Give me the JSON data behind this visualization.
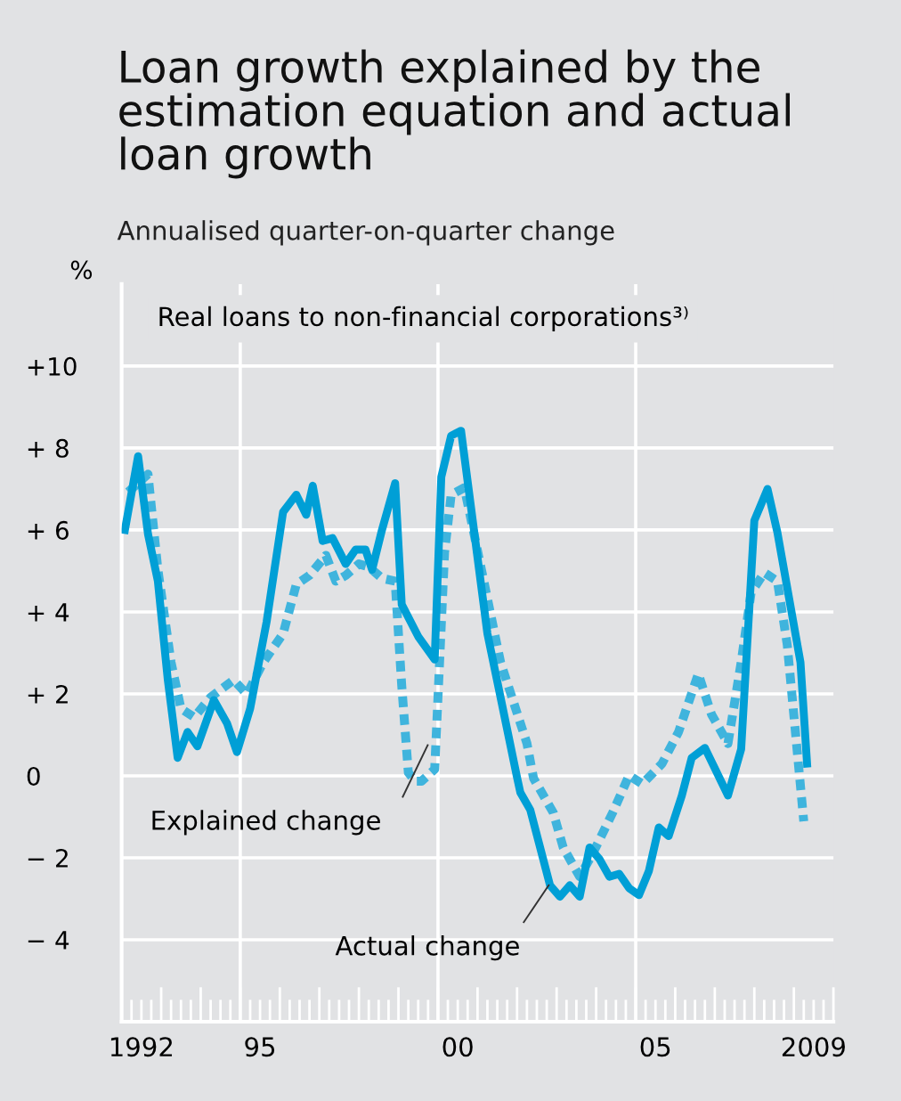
{
  "chart_data": {
    "type": "line",
    "title": "Loan growth explained by the estimation equation and actual loan growth",
    "subtitle": "Annualised quarter-on-quarter change",
    "ylabel": "%",
    "annotations": [
      "Real loans to non-financial corporations³⁾"
    ],
    "xlim": [
      "1992-01",
      "2010-01"
    ],
    "xticks": [
      {
        "value": "1992-07",
        "label": "1992"
      },
      {
        "value": "1995-01",
        "label": null
      },
      {
        "value": "1995-07",
        "label": "95"
      },
      {
        "value": "2000-01",
        "label": null
      },
      {
        "value": "2000-07",
        "label": "00"
      },
      {
        "value": "2005-01",
        "label": null
      },
      {
        "value": "2005-07",
        "label": "05"
      },
      {
        "value": "2009-07",
        "label": "2009"
      }
    ],
    "ylim": [
      -6,
      12
    ],
    "yticks": [
      {
        "value": -4,
        "label": "− 4"
      },
      {
        "value": -2,
        "label": "− 2"
      },
      0,
      {
        "value": 2,
        "label": "+ 2"
      },
      {
        "value": 4,
        "label": "+ 4"
      },
      {
        "value": 6,
        "label": "+ 6"
      },
      {
        "value": 8,
        "label": "+ 8"
      },
      {
        "value": 10,
        "label": "+10"
      }
    ],
    "grid": true,
    "legend": false,
    "series": [
      {
        "name": "Actual change",
        "color": "#009fd6",
        "line_style": "solid",
        "x": [
          "1992-02",
          "1992-06",
          "1992-09",
          "1992-12",
          "1993-03",
          "1993-06",
          "1993-09",
          "1993-12",
          "1994-05",
          "1994-09",
          "1994-12",
          "1995-04",
          "1995-09",
          "1996-02",
          "1996-06",
          "1996-09",
          "1996-11",
          "1997-02",
          "1997-05",
          "1997-09",
          "1997-12",
          "1998-03",
          "1998-05",
          "1998-08",
          "1998-12",
          "1999-02",
          "1999-07",
          "1999-12",
          "2000-02",
          "2000-05",
          "2000-08",
          "2001-04",
          "2002-01",
          "2002-02",
          "2002-05",
          "2002-11",
          "2003-02",
          "2003-05",
          "2003-08",
          "2003-11",
          "2004-02",
          "2004-05",
          "2004-08",
          "2004-11",
          "2005-02",
          "2005-05",
          "2005-08",
          "2005-11",
          "2006-03",
          "2006-06",
          "2006-10",
          "2007-05",
          "2007-09",
          "2008-01",
          "2008-05",
          "2008-08",
          "2009-03",
          "2009-05"
        ],
        "values": [
          6.0,
          7.8,
          5.9,
          4.75,
          2.35,
          0.44,
          1.07,
          0.72,
          1.85,
          1.28,
          0.58,
          1.64,
          3.76,
          6.44,
          6.86,
          6.37,
          7.08,
          5.73,
          5.8,
          5.17,
          5.52,
          5.52,
          5.03,
          6.0,
          7.14,
          4.18,
          3.4,
          2.84,
          7.29,
          8.3,
          8.42,
          3.47,
          -0.04,
          -0.41,
          -0.83,
          -2.67,
          -2.95,
          -2.67,
          -2.95,
          -1.75,
          -2.03,
          -2.46,
          -2.39,
          -2.74,
          -2.91,
          -2.32,
          -1.26,
          -1.47,
          -0.48,
          0.44,
          0.68,
          -0.48,
          0.65,
          6.23,
          7.0,
          5.94,
          2.77,
          0.3
        ]
      },
      {
        "name": "Explained change",
        "color": "#3fb4dd",
        "line_style": "dotted",
        "x": [
          "1992-03",
          "1992-09",
          "1992-12",
          "1993-04",
          "1993-07",
          "1993-11",
          "1994-04",
          "1994-11",
          "1995-03",
          "1995-08",
          "1996-02",
          "1996-06",
          "1996-10",
          "1997-03",
          "1997-06",
          "1997-09",
          "1998-01",
          "1998-04",
          "1998-08",
          "1998-12",
          "1999-02",
          "1999-04",
          "1999-06",
          "1999-08",
          "1999-12",
          "2000-03",
          "2000-05",
          "2000-09",
          "2000-12",
          "2001-08",
          "2002-04",
          "2002-06",
          "2002-12",
          "2003-03",
          "2003-08",
          "2003-12",
          "2004-06",
          "2004-11",
          "2005-03",
          "2005-09",
          "2006-02",
          "2006-08",
          "2006-12",
          "2007-05",
          "2007-09",
          "2007-12",
          "2008-04",
          "2008-08",
          "2008-11",
          "2009-04"
        ],
        "values": [
          6.93,
          7.36,
          5.03,
          2.77,
          1.64,
          1.43,
          1.92,
          2.34,
          1.99,
          2.77,
          3.47,
          4.67,
          4.89,
          5.38,
          4.75,
          4.89,
          5.17,
          5.1,
          4.82,
          4.75,
          2.2,
          0.08,
          -0.13,
          -0.13,
          0.16,
          5.45,
          6.86,
          7.03,
          5.88,
          2.77,
          0.79,
          -0.06,
          -0.9,
          -1.75,
          -2.46,
          -1.89,
          -0.9,
          0.01,
          -0.2,
          0.3,
          1.07,
          2.49,
          1.5,
          0.79,
          2.77,
          4.46,
          4.96,
          4.75,
          3.19,
          -1.11
        ]
      }
    ]
  }
}
